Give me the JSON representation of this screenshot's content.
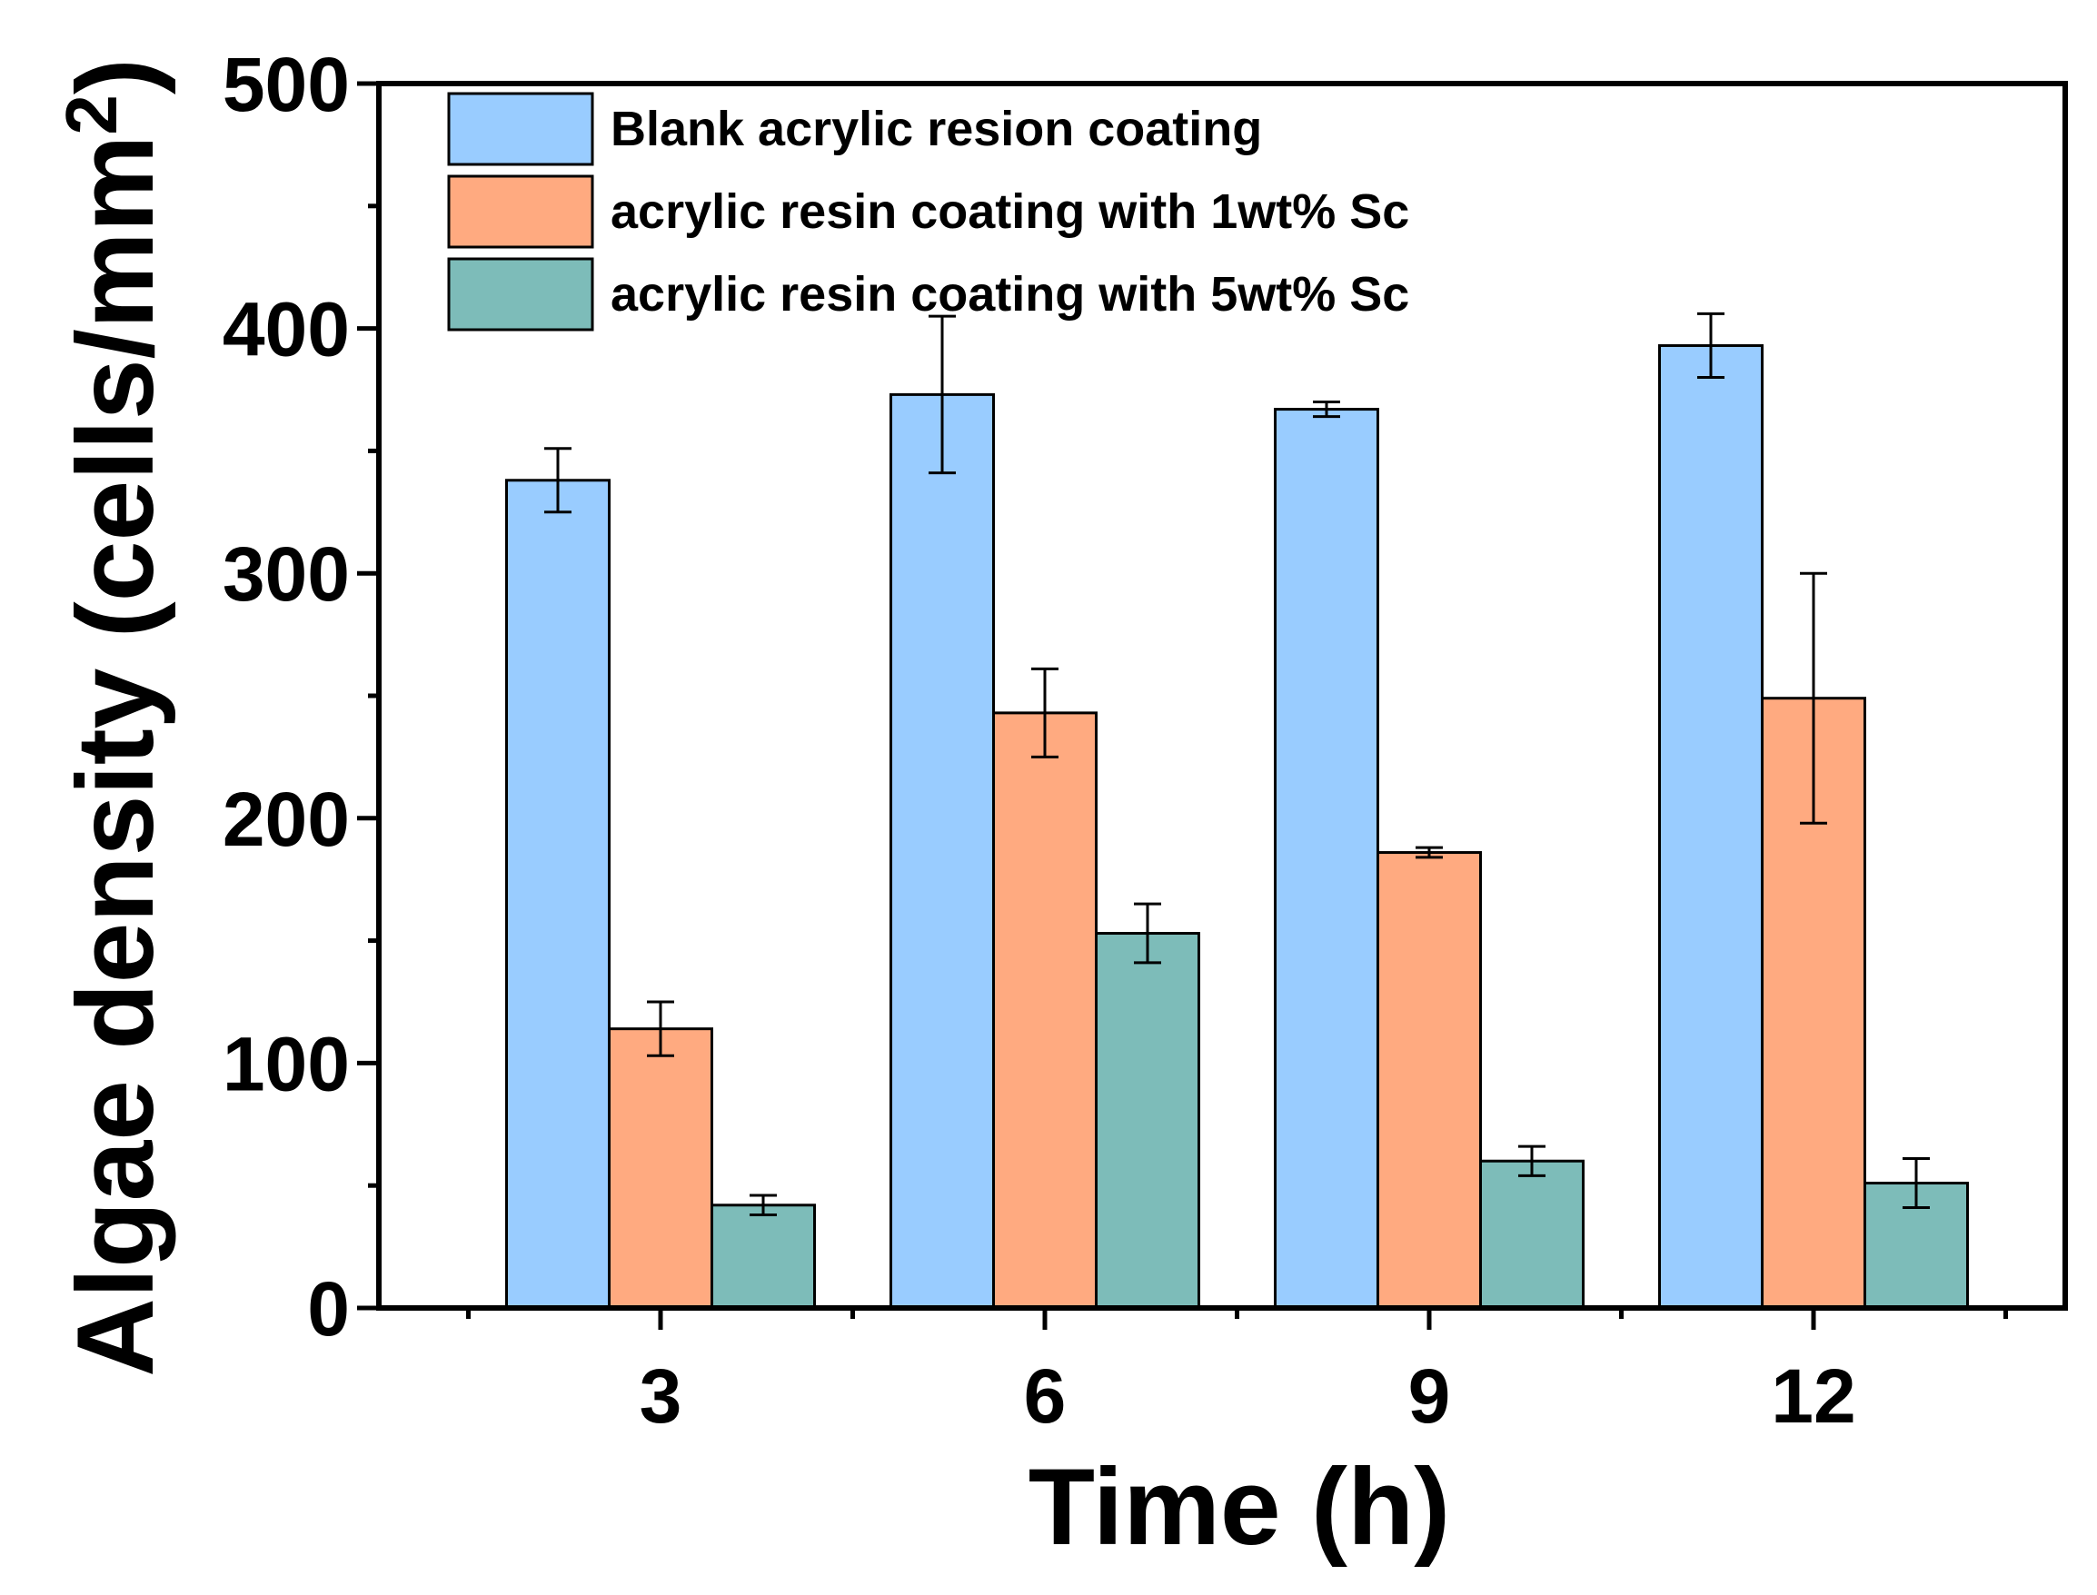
{
  "chart_data": {
    "type": "bar",
    "title": "",
    "xlabel": "Time (h)",
    "ylabel": "Algae density (cells/mm",
    "ylabel_superscript": "2",
    "ylabel_close": ")",
    "ylim": [
      0,
      500
    ],
    "yticks": [
      "0",
      "100",
      "200",
      "300",
      "400",
      "500"
    ],
    "categories": [
      "3",
      "6",
      "9",
      "12"
    ],
    "legend_position": "top-left",
    "series": [
      {
        "name": "Blank acrylic resion coating",
        "color": "#99CCFF",
        "values": [
          338,
          373,
          367,
          393
        ],
        "errors": [
          13,
          32,
          3,
          13
        ]
      },
      {
        "name": "acrylic resin coating with 1wt% Sc",
        "color": "#FFAA80",
        "values": [
          114,
          243,
          186,
          249
        ],
        "errors": [
          11,
          18,
          2,
          51
        ]
      },
      {
        "name": "acrylic resin coating with 5wt% Sc",
        "color": "#7DBCB9",
        "values": [
          42,
          153,
          60,
          51
        ],
        "errors": [
          4,
          12,
          6,
          10
        ]
      }
    ]
  }
}
